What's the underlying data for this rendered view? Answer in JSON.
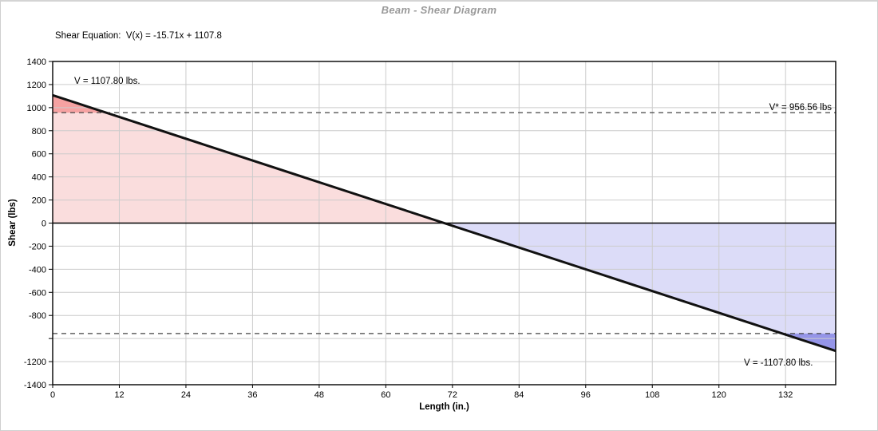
{
  "window": {
    "title": "Beam - Shear Diagram"
  },
  "chart_data": {
    "type": "line",
    "title": "Beam - Shear Diagram",
    "equation_label": "Shear Equation:  V(x) = -15.71x + 1107.8",
    "xlabel": "Length (in.)",
    "ylabel": "Shear (lbs)",
    "xlim": [
      0,
      141.03
    ],
    "ylim": [
      -1400,
      1400
    ],
    "grid": true,
    "legend": "none",
    "xticks": [
      {
        "v": 0,
        "label": "0"
      },
      {
        "v": 12,
        "label": "12"
      },
      {
        "v": 24,
        "label": "24"
      },
      {
        "v": 36,
        "label": "36"
      },
      {
        "v": 48,
        "label": "48"
      },
      {
        "v": 60,
        "label": "60"
      },
      {
        "v": 72,
        "label": "72"
      },
      {
        "v": 84,
        "label": "84"
      },
      {
        "v": 96,
        "label": "96"
      },
      {
        "v": 108,
        "label": "108"
      },
      {
        "v": 120,
        "label": "120"
      },
      {
        "v": 132,
        "label": "132"
      }
    ],
    "yticks": [
      {
        "v": 1400,
        "label": "1400"
      },
      {
        "v": 1200,
        "label": "1200"
      },
      {
        "v": 1000,
        "label": "1000"
      },
      {
        "v": 800,
        "label": "800"
      },
      {
        "v": 600,
        "label": "600"
      },
      {
        "v": 400,
        "label": "400"
      },
      {
        "v": 200,
        "label": "200"
      },
      {
        "v": 0,
        "label": "0"
      },
      {
        "v": -200,
        "label": "-200"
      },
      {
        "v": -400,
        "label": "-400"
      },
      {
        "v": -600,
        "label": "-600"
      },
      {
        "v": -800,
        "label": "-800"
      },
      {
        "v": -1000,
        "label": ""
      },
      {
        "v": -1200,
        "label": "-1200"
      },
      {
        "v": -1400,
        "label": "-1400"
      }
    ],
    "series": [
      {
        "name": "shear-line",
        "x": [
          0,
          141.03
        ],
        "y": [
          1107.8,
          -1107.8
        ]
      }
    ],
    "dashed_levels": [
      956.56,
      -956.56
    ],
    "key_values": {
      "v_start": 1107.8,
      "v_end": -1107.8,
      "v_star": 956.56,
      "zero_crossing_x": 70.516
    },
    "regions": [
      {
        "name": "positive-shear-area",
        "color": "#fadddd",
        "points": [
          [
            0,
            1107.8
          ],
          [
            70.516,
            0
          ],
          [
            0,
            0
          ]
        ]
      },
      {
        "name": "positive-overstress-area",
        "color": "#f6a2a2",
        "points": [
          [
            0,
            1107.8
          ],
          [
            9.627,
            956.56
          ],
          [
            0,
            956.56
          ]
        ]
      },
      {
        "name": "negative-shear-area",
        "color": "#dcdcf8",
        "points": [
          [
            70.516,
            0
          ],
          [
            141.03,
            -1107.8
          ],
          [
            141.03,
            0
          ]
        ]
      },
      {
        "name": "negative-overstress-area",
        "color": "#9595e8",
        "points": [
          [
            131.403,
            -956.56
          ],
          [
            141.03,
            -1107.8
          ],
          [
            141.03,
            -956.56
          ]
        ]
      }
    ],
    "annotations": {
      "v_max": "V = 1107.80 lbs.",
      "v_star": "V* = 956.56 lbs",
      "v_min": "V = -1107.80 lbs."
    },
    "colors": {
      "line": "#111111",
      "grid": "#cccccc",
      "zero_axis": "#000000",
      "dashed": "#444444",
      "frame": "#000000",
      "title": "#9a9a9a"
    }
  }
}
